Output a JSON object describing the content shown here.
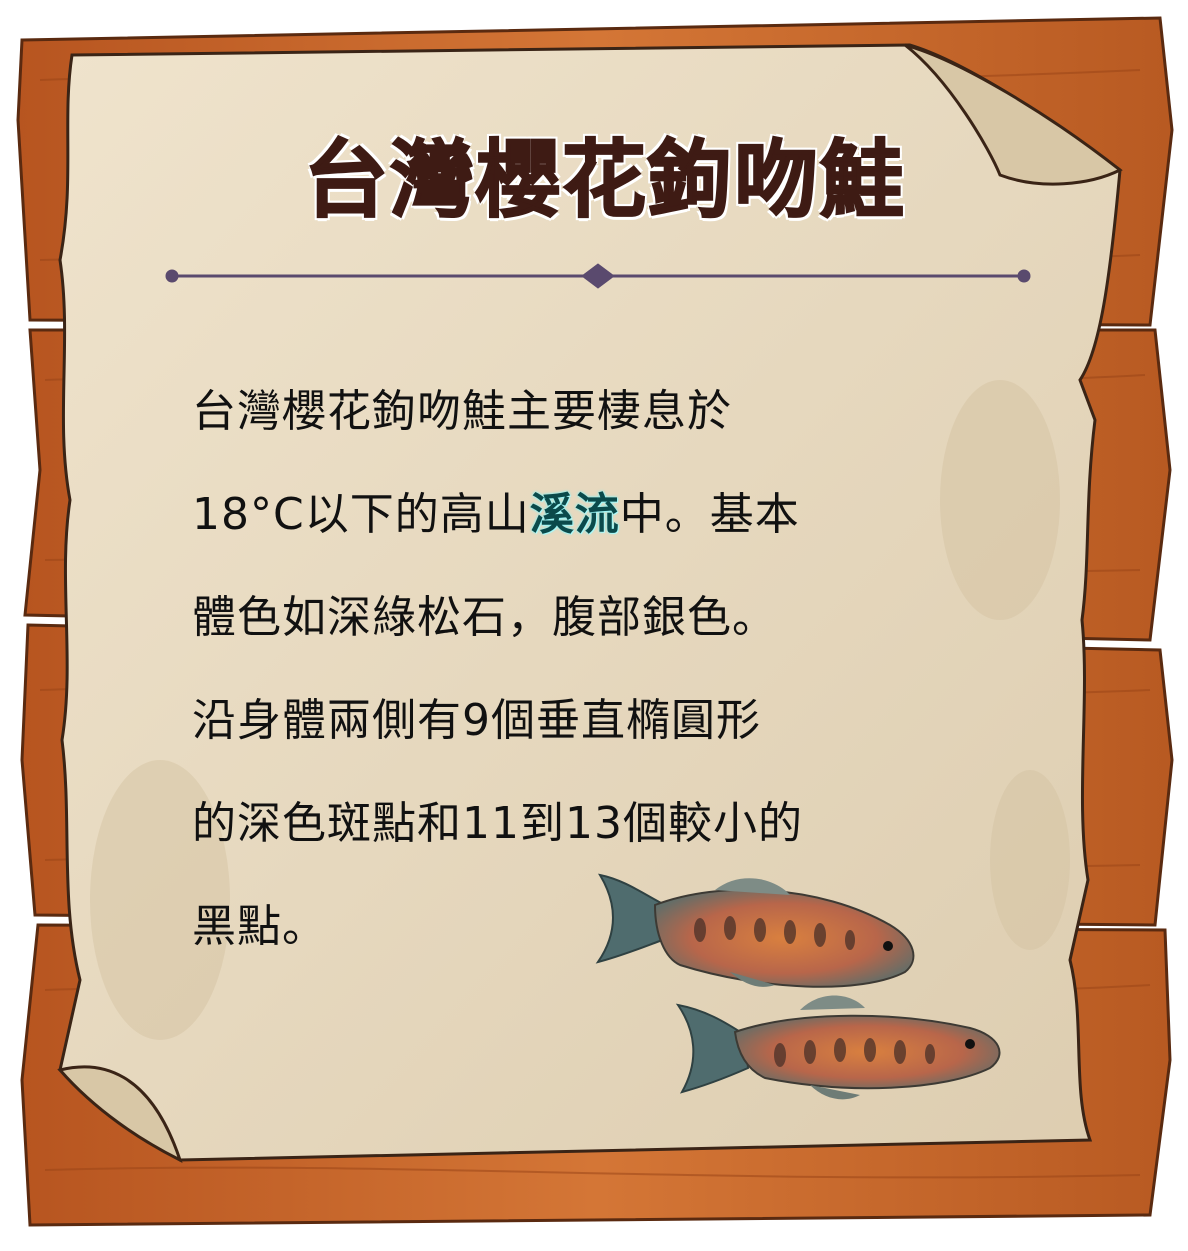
{
  "card": {
    "title": "台灣櫻花鉤吻鮭",
    "body": {
      "line1": "台灣櫻花鉤吻鮭主要棲息於",
      "line2_pre": "18°C以下的高山",
      "line2_highlight": "溪流",
      "line2_post": "中。基本",
      "line3": "體色如深綠松石，腹部銀色。",
      "line4": "沿身體兩側有9個垂直橢圓形",
      "line5": "的深色斑點和11到13個較小的",
      "line6": "黑點。"
    }
  },
  "colors": {
    "title": "#3e1b14",
    "highlight": "#0b4a4b",
    "wood": "#c8682b",
    "parchment": "#e9dcc4",
    "divider": "#5a4a6e"
  },
  "icons": [
    "wooden-board",
    "parchment-scroll",
    "divider-ornament",
    "salmon-fish-illustration"
  ]
}
